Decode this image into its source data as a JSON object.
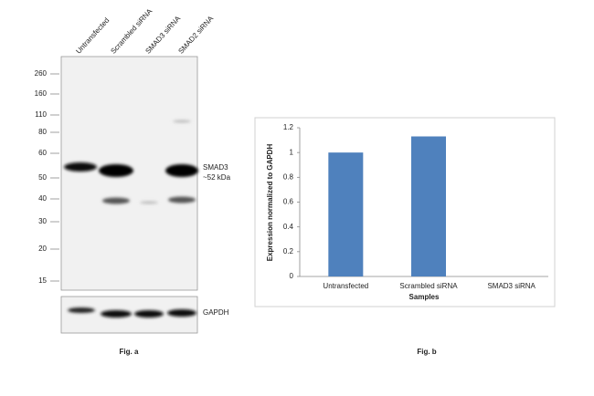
{
  "blot": {
    "lanes": [
      "Untransfected",
      "Scrambled siRNA",
      "SMAD3 siRNA",
      "SMAD2 siRNA"
    ],
    "markers": [
      "260",
      "160",
      "110",
      "80",
      "60",
      "50",
      "40",
      "30",
      "20",
      "15"
    ],
    "band_label": "SMAD3",
    "band_size": "~52 kDa",
    "control_label": "GAPDH",
    "caption": "Fig. a"
  },
  "chart_data": {
    "type": "bar",
    "categories": [
      "Untransfected",
      "Scrambled siRNA",
      "SMAD3 siRNA"
    ],
    "values": [
      1.0,
      1.13,
      0
    ],
    "color": "#4f81bd",
    "ylim": [
      0,
      1.2
    ],
    "yticks": [
      0,
      0.2,
      0.4,
      0.6,
      0.8,
      1,
      1.2
    ],
    "ylabel": "Expression normalized to GAPDH",
    "xlabel": "Samples",
    "caption": "Fig. b"
  }
}
